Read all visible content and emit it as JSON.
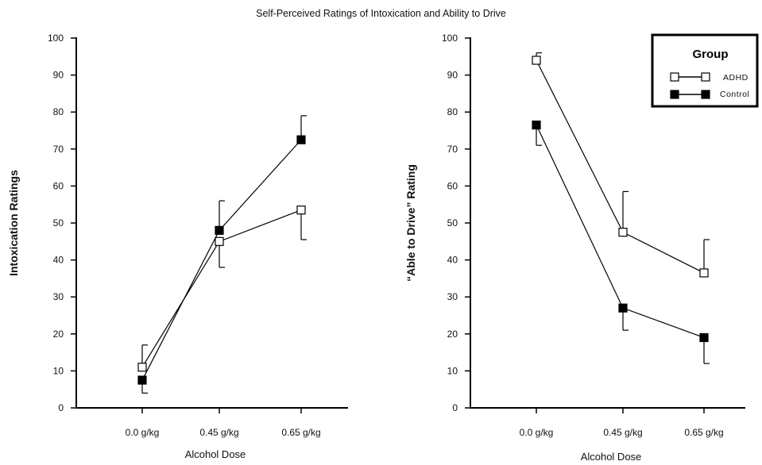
{
  "title": "Self-Perceived Ratings of Intoxication and Ability to Drive",
  "legend": {
    "title": "Group",
    "entries": [
      {
        "name": "ADHD",
        "marker": "open-square",
        "color": "#000000"
      },
      {
        "name": "Control",
        "marker": "filled-square",
        "color": "#000000"
      }
    ]
  },
  "chart_data": [
    {
      "type": "line",
      "title": "",
      "xlabel": "Alcohol Dose",
      "ylabel": "Intoxication Ratings",
      "categories": [
        "0.0 g/kg",
        "0.45 g/kg",
        "0.65 g/kg"
      ],
      "ylim": [
        0,
        100
      ],
      "yticks": [
        0,
        10,
        20,
        30,
        40,
        50,
        60,
        70,
        80,
        90,
        100
      ],
      "grid": false,
      "series": [
        {
          "name": "ADHD",
          "marker": "open-square",
          "values": [
            11,
            45,
            53.5
          ],
          "error_upper": [
            17,
            null,
            null
          ],
          "error_lower": [
            null,
            38,
            45.5
          ]
        },
        {
          "name": "Control",
          "marker": "filled-square",
          "values": [
            7.5,
            48,
            72.5
          ],
          "error_upper": [
            null,
            56,
            79
          ],
          "error_lower": [
            4,
            null,
            null
          ]
        }
      ]
    },
    {
      "type": "line",
      "title": "",
      "xlabel": "Alcohol Dose",
      "ylabel": "“Able to Drive” Rating",
      "categories": [
        "0.0 g/kg",
        "0.45 g/kg",
        "0.65 g/kg"
      ],
      "ylim": [
        0,
        100
      ],
      "yticks": [
        0,
        10,
        20,
        30,
        40,
        50,
        60,
        70,
        80,
        90,
        100
      ],
      "grid": false,
      "legend_position": "top-right",
      "series": [
        {
          "name": "ADHD",
          "marker": "open-square",
          "values": [
            94,
            47.5,
            36.5
          ],
          "error_upper": [
            96,
            58.5,
            45.5
          ],
          "error_lower": [
            null,
            null,
            null
          ]
        },
        {
          "name": "Control",
          "marker": "filled-square",
          "values": [
            76.5,
            27,
            19
          ],
          "error_upper": [
            null,
            null,
            null
          ],
          "error_lower": [
            71,
            21,
            12
          ]
        }
      ]
    }
  ]
}
